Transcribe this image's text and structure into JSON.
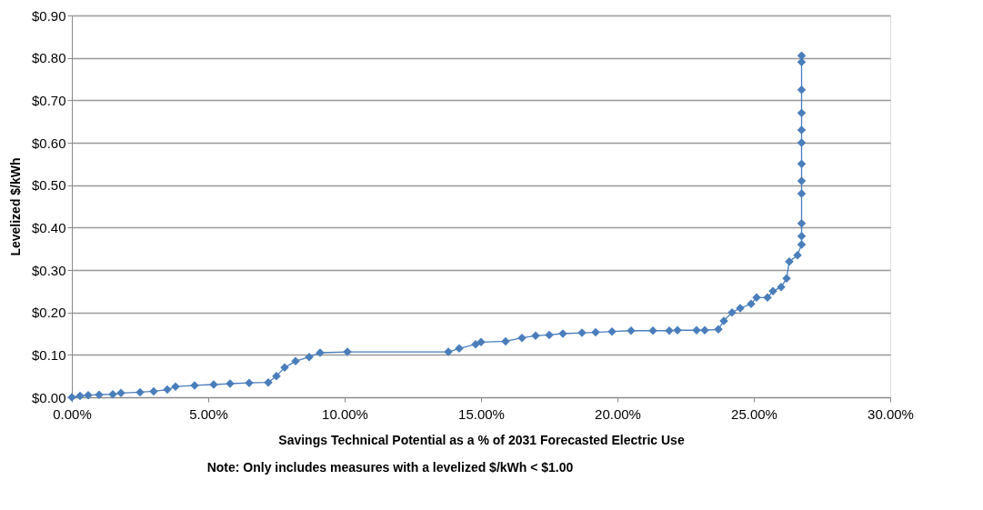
{
  "chart_data": {
    "type": "line",
    "xlabel": "Savings Technical  Potential as a % of 2031 Forecasted Electric Use",
    "ylabel": "Levelized $/kWh",
    "annotations": [
      "Note: Only includes measures with a levelized $/kWh < $1.00"
    ],
    "series": [
      {
        "color": "#4a7ebb",
        "x": [
          0,
          0.3,
          0.6,
          1.0,
          1.5,
          1.8,
          2.5,
          3.0,
          3.5,
          3.8,
          4.5,
          5.2,
          5.8,
          6.5,
          7.2,
          7.5,
          7.8,
          8.2,
          8.7,
          9.1,
          10.1,
          13.8,
          14.2,
          14.8,
          15.0,
          15.9,
          16.5,
          17.0,
          17.5,
          18.0,
          18.7,
          19.2,
          19.8,
          20.5,
          21.3,
          21.9,
          22.2,
          22.9,
          23.2,
          23.7,
          23.9,
          24.2,
          24.5,
          24.9,
          25.1,
          25.5,
          25.7,
          26.0,
          26.2,
          26.3,
          26.6,
          26.75,
          26.75,
          26.75,
          26.75,
          26.75,
          26.75,
          26.75,
          26.75,
          26.75,
          26.75,
          26.75,
          26.75
        ],
        "values": [
          0,
          0.003,
          0.005,
          0.006,
          0.007,
          0.01,
          0.012,
          0.014,
          0.018,
          0.025,
          0.028,
          0.03,
          0.032,
          0.034,
          0.035,
          0.05,
          0.07,
          0.085,
          0.095,
          0.105,
          0.107,
          0.107,
          0.115,
          0.125,
          0.13,
          0.132,
          0.14,
          0.145,
          0.147,
          0.15,
          0.152,
          0.153,
          0.155,
          0.157,
          0.157,
          0.157,
          0.158,
          0.158,
          0.158,
          0.16,
          0.18,
          0.2,
          0.21,
          0.22,
          0.235,
          0.235,
          0.25,
          0.26,
          0.28,
          0.32,
          0.335,
          0.36,
          0.38,
          0.41,
          0.48,
          0.51,
          0.55,
          0.6,
          0.63,
          0.67,
          0.725,
          0.79,
          0.805
        ]
      }
    ],
    "xlim": [
      0,
      30
    ],
    "xticks": [
      {
        "value": 0,
        "label": "0.00%"
      },
      {
        "value": 5,
        "label": "5.00%"
      },
      {
        "value": 10,
        "label": "10.00%"
      },
      {
        "value": 15,
        "label": "15.00%"
      },
      {
        "value": 20,
        "label": "20.00%"
      },
      {
        "value": 25,
        "label": "25.00%"
      },
      {
        "value": 30,
        "label": "30.00%"
      }
    ],
    "ylim": [
      0,
      0.9
    ],
    "yticks": [
      {
        "value": 0,
        "label": "$0.00"
      },
      {
        "value": 0.1,
        "label": "$0.10"
      },
      {
        "value": 0.2,
        "label": "$0.20"
      },
      {
        "value": 0.3,
        "label": "$0.30"
      },
      {
        "value": 0.4,
        "label": "$0.40"
      },
      {
        "value": 0.5,
        "label": "$0.50"
      },
      {
        "value": 0.6,
        "label": "$0.60"
      },
      {
        "value": 0.7,
        "label": "$0.70"
      },
      {
        "value": 0.8,
        "label": "$0.80"
      },
      {
        "value": 0.9,
        "label": "$0.90"
      }
    ],
    "grid": "y",
    "marker": "diamond",
    "line_style": "solid"
  }
}
